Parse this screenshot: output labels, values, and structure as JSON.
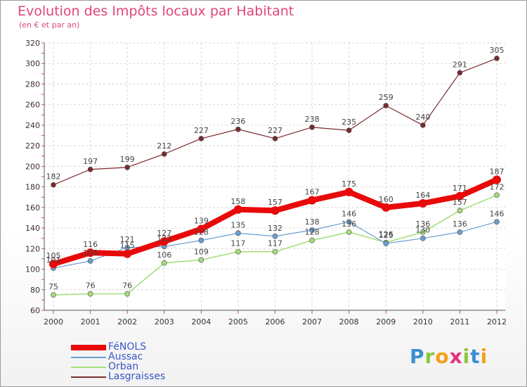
{
  "chart_data": {
    "type": "line",
    "title": "Evolution des Impôts locaux par Habitant",
    "subtitle": "(en € et par an)",
    "xlabel": "",
    "ylabel": "",
    "x": [
      "2000",
      "2001",
      "2002",
      "2003",
      "2004",
      "2005",
      "2006",
      "2007",
      "2008",
      "2009",
      "2010",
      "2011",
      "2012"
    ],
    "ylim": [
      60,
      320
    ],
    "yticks": [
      60,
      80,
      100,
      120,
      140,
      160,
      180,
      200,
      220,
      240,
      260,
      280,
      300,
      320
    ],
    "grid": true,
    "legend_position": "bottom-left",
    "series": [
      {
        "name": "FéNOLS",
        "color": "#e80a0a",
        "values": [
          105,
          116,
          115,
          127,
          139,
          158,
          157,
          167,
          175,
          160,
          164,
          171,
          187
        ]
      },
      {
        "name": "Aussac",
        "color": "#6a9fd3",
        "values": [
          101,
          108,
          121,
          122,
          128,
          135,
          132,
          138,
          146,
          125,
          130,
          136,
          146
        ]
      },
      {
        "name": "Orban",
        "color": "#a6df7a",
        "values": [
          75,
          76,
          76,
          106,
          109,
          117,
          117,
          128,
          136,
          126,
          136,
          157,
          172
        ]
      },
      {
        "name": "Lasgraisses",
        "color": "#7a2a2e",
        "values": [
          182,
          197,
          199,
          212,
          227,
          236,
          227,
          238,
          235,
          259,
          240,
          291,
          305
        ]
      }
    ]
  },
  "brand": {
    "letters": [
      "P",
      "r",
      "o",
      "x",
      "i",
      "t",
      "i"
    ],
    "colors": [
      "#3d8fd4",
      "#8cc63f",
      "#f5a01a",
      "#e2337a",
      "#8cc63f",
      "#3d8fd4",
      "#f5a01a"
    ]
  }
}
